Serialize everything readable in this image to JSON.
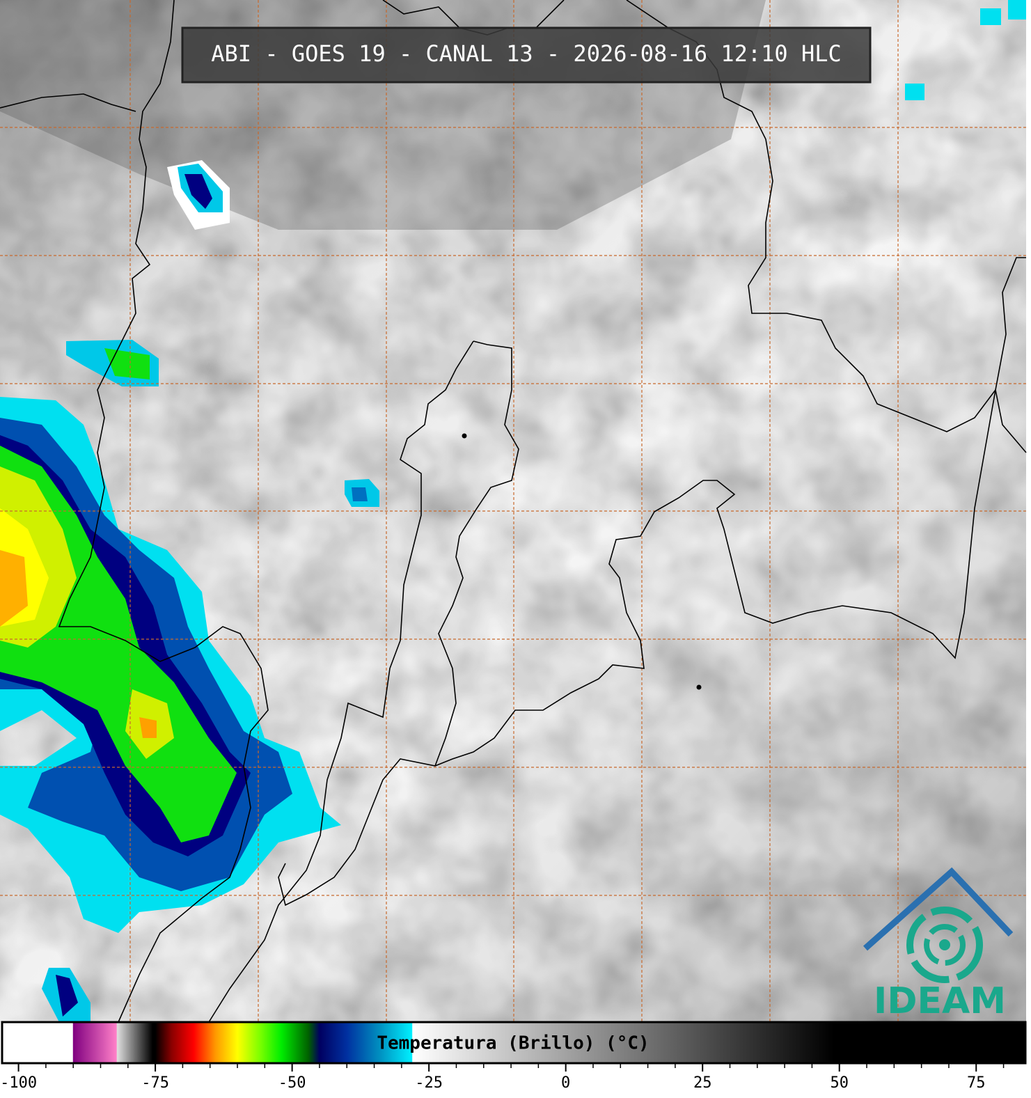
{
  "title": "ABI - GOES 19 - CANAL 13 - 2026-08-16 12:10 HLC",
  "logo": "IDEAM",
  "colorbar": {
    "label": "Temperatura (Brillo) (°C)",
    "xlim": [
      -103,
      84
    ],
    "xticks": [
      -100,
      -75,
      -50,
      -25,
      0,
      25,
      50,
      75
    ],
    "minor_ticks": [
      -95,
      -90,
      -85,
      -80,
      -70,
      -65,
      -60,
      -55,
      -45,
      -40,
      -35,
      -30,
      -20,
      -15,
      -10,
      -5,
      5,
      10,
      15,
      20,
      30,
      35,
      40,
      45,
      55,
      60,
      65,
      70,
      80
    ],
    "stops": [
      {
        "value": -103,
        "color": "#ffffff"
      },
      {
        "value": -90.1,
        "color": "#ffffff"
      },
      {
        "value": -90,
        "color": "#800080"
      },
      {
        "value": -82.1,
        "color": "#ff80c8"
      },
      {
        "value": -82,
        "color": "#e0e0e0"
      },
      {
        "value": -75.5,
        "color": "#000000"
      },
      {
        "value": -75,
        "color": "#000000"
      },
      {
        "value": -72,
        "color": "#8b0000"
      },
      {
        "value": -68,
        "color": "#ff0000"
      },
      {
        "value": -64,
        "color": "#ff9900"
      },
      {
        "value": -60,
        "color": "#ffff00"
      },
      {
        "value": -56,
        "color": "#80ff00"
      },
      {
        "value": -52,
        "color": "#00ee00"
      },
      {
        "value": -47,
        "color": "#006000"
      },
      {
        "value": -45,
        "color": "#000060"
      },
      {
        "value": -40,
        "color": "#0030a0"
      },
      {
        "value": -34,
        "color": "#0090c0"
      },
      {
        "value": -28.1,
        "color": "#00f0ff"
      },
      {
        "value": -28,
        "color": "#ffffff"
      },
      {
        "value": 49,
        "color": "#000000"
      },
      {
        "value": 84,
        "color": "#000000"
      }
    ]
  }
}
